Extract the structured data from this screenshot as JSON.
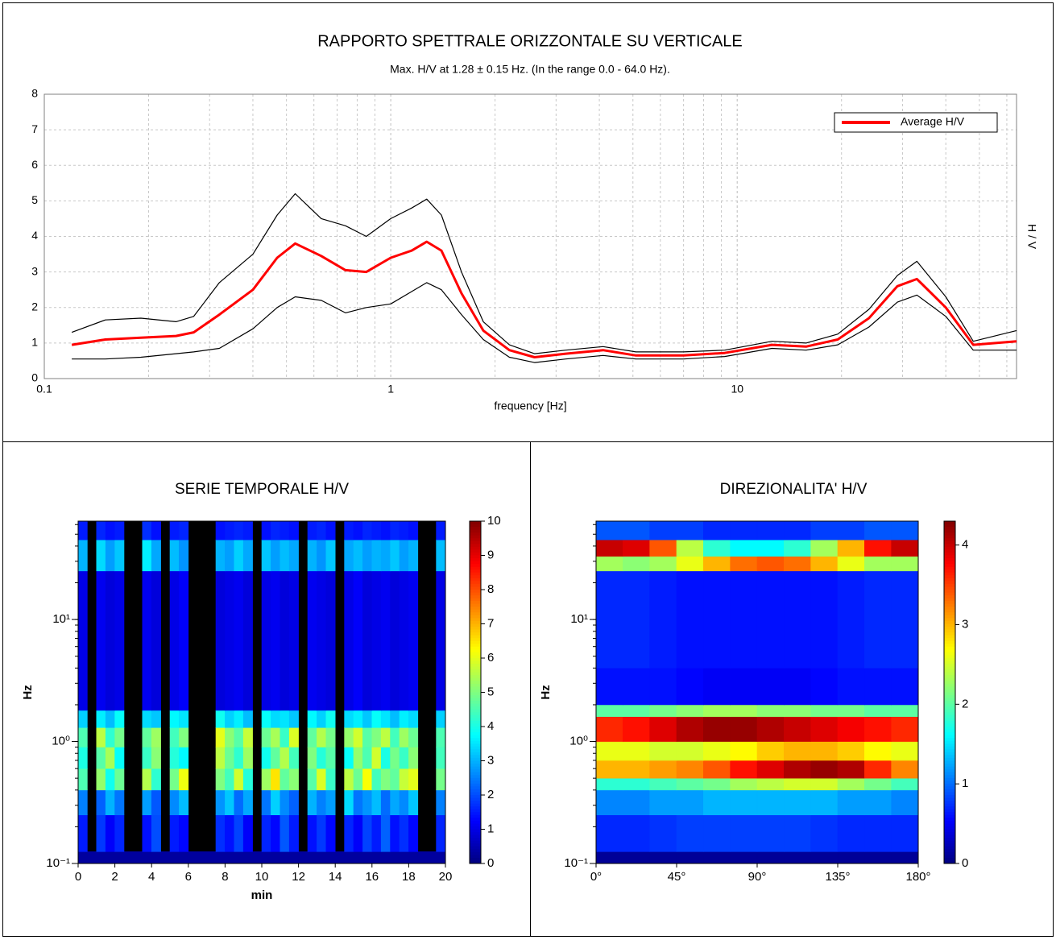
{
  "chart_data": [
    {
      "type": "line",
      "title": "RAPPORTO SPETTRALE ORIZZONTALE SU VERTICALE",
      "subtitle": "Max. H/V at 1.28 ± 0.15 Hz. (In the range 0.0 - 64.0 Hz).",
      "xlabel": "frequency [Hz]",
      "ylabel": "H / V",
      "log_x": true,
      "grid": true,
      "legend": "upper right",
      "xlim": [
        0.1,
        64
      ],
      "xticks": [
        0.1,
        1,
        10
      ],
      "ylim": [
        0,
        8
      ],
      "yticks": [
        0,
        1,
        2,
        3,
        4,
        5,
        6,
        7,
        8
      ],
      "x": [
        0.12,
        0.15,
        0.19,
        0.24,
        0.27,
        0.32,
        0.4,
        0.47,
        0.53,
        0.63,
        0.74,
        0.85,
        1.0,
        1.15,
        1.27,
        1.4,
        1.6,
        1.85,
        2.2,
        2.6,
        3.2,
        4.1,
        5.1,
        7,
        9.2,
        12.6,
        15.8,
        19.5,
        24,
        29,
        33,
        40,
        48,
        64
      ],
      "series": [
        {
          "color": "#000000",
          "values": [
            1.3,
            1.65,
            1.7,
            1.6,
            1.75,
            2.7,
            3.5,
            4.6,
            5.2,
            4.5,
            4.3,
            4.0,
            4.5,
            4.8,
            5.05,
            4.6,
            3.0,
            1.6,
            0.95,
            0.7,
            0.8,
            0.9,
            0.75,
            0.75,
            0.8,
            1.05,
            1.0,
            1.25,
            1.95,
            2.9,
            3.3,
            2.3,
            1.05,
            1.35
          ]
        },
        {
          "color": "#000000",
          "values": [
            0.55,
            0.55,
            0.6,
            0.7,
            0.75,
            0.85,
            1.4,
            2.0,
            2.3,
            2.2,
            1.85,
            2.0,
            2.1,
            2.45,
            2.7,
            2.5,
            1.8,
            1.1,
            0.6,
            0.45,
            0.55,
            0.65,
            0.55,
            0.55,
            0.62,
            0.85,
            0.8,
            0.95,
            1.45,
            2.15,
            2.35,
            1.75,
            0.8,
            0.8
          ]
        },
        {
          "name": "Average H/V",
          "color": "#ff0000",
          "values": [
            0.95,
            1.1,
            1.15,
            1.2,
            1.3,
            1.8,
            2.5,
            3.4,
            3.8,
            3.45,
            3.05,
            3.0,
            3.4,
            3.6,
            3.85,
            3.6,
            2.4,
            1.35,
            0.8,
            0.6,
            0.7,
            0.8,
            0.65,
            0.65,
            0.72,
            0.95,
            0.9,
            1.1,
            1.7,
            2.6,
            2.8,
            2.0,
            0.95,
            1.05
          ]
        }
      ]
    },
    {
      "type": "heatmap",
      "title": "SERIE TEMPORALE H/V",
      "xlabel": "min",
      "ylabel": "Hz",
      "colormap": "jet",
      "log_y": true,
      "xlim": [
        0,
        20
      ],
      "xticks": [
        0,
        2,
        4,
        6,
        8,
        10,
        12,
        14,
        16,
        18,
        20
      ],
      "ylim": [
        0.1,
        64
      ],
      "yticks": [
        {
          "value": 0.1,
          "label": "10⁻¹"
        },
        {
          "value": 1,
          "label": "10⁰"
        },
        {
          "value": 10,
          "label": "10¹"
        }
      ],
      "clim": [
        0,
        10
      ],
      "cticks": [
        0,
        1,
        2,
        3,
        4,
        5,
        6,
        7,
        8,
        9,
        10
      ],
      "x_bins": [
        0,
        0.5,
        1,
        1.5,
        2,
        2.5,
        3,
        3.5,
        4,
        4.5,
        5,
        5.5,
        6,
        6.5,
        7,
        7.5,
        8,
        8.5,
        9,
        9.5,
        10,
        10.5,
        11,
        11.5,
        12,
        12.5,
        13,
        13.5,
        14,
        14.5,
        15,
        15.5,
        16,
        16.5,
        17,
        17.5,
        18,
        18.5,
        19,
        19.5,
        20
      ],
      "y_bins": [
        0.1,
        0.125,
        0.25,
        0.4,
        0.6,
        0.9,
        1.3,
        1.8,
        25,
        45,
        64
      ],
      "values": [
        [
          0.3,
          0.3,
          0.3,
          0.3,
          0.3,
          0.3,
          0.3,
          0.3,
          0.3,
          0.3,
          0.3,
          0.3,
          0.3,
          0.3,
          0.3,
          0.3,
          0.3,
          0.3,
          0.3,
          0.3,
          0.3,
          0.3,
          0.3,
          0.3,
          0.3,
          0.3,
          0.3,
          0.3,
          0.3,
          0.3,
          0.3,
          0.3,
          0.3,
          0.3,
          0.3,
          0.3,
          0.3,
          0.3,
          0.3,
          0.3
        ],
        [
          1.5,
          null,
          1.8,
          1.2,
          1.6,
          null,
          null,
          1.4,
          2.0,
          null,
          1.5,
          1.3,
          null,
          null,
          null,
          1.7,
          1.4,
          1.9,
          1.2,
          null,
          1.6,
          1.3,
          2.1,
          1.5,
          null,
          1.4,
          1.8,
          1.3,
          null,
          1.6,
          1.2,
          1.9,
          1.5,
          2.2,
          1.4,
          1.7,
          1.3,
          null,
          null,
          1.6
        ],
        [
          2.5,
          null,
          2.2,
          3.0,
          2.4,
          null,
          null,
          2.8,
          2.1,
          null,
          2.6,
          3.1,
          null,
          null,
          null,
          2.7,
          3.2,
          2.3,
          2.9,
          null,
          2.4,
          3.3,
          2.6,
          2.2,
          null,
          3.0,
          2.5,
          2.8,
          null,
          3.4,
          2.4,
          2.7,
          3.1,
          2.3,
          2.9,
          2.6,
          3.2,
          null,
          null,
          2.5
        ],
        [
          4.5,
          null,
          5.2,
          3.9,
          4.8,
          null,
          null,
          5.5,
          4.2,
          null,
          4.9,
          6.1,
          null,
          null,
          null,
          5.0,
          4.4,
          5.8,
          4.1,
          null,
          5.3,
          6.5,
          4.7,
          5.1,
          null,
          4.6,
          5.9,
          4.3,
          null,
          5.6,
          4.8,
          6.2,
          4.4,
          5.0,
          4.7,
          5.7,
          6.0,
          null,
          null,
          4.9
        ],
        [
          4.0,
          null,
          4.6,
          5.4,
          3.8,
          null,
          null,
          4.3,
          5.1,
          null,
          4.1,
          3.7,
          null,
          null,
          null,
          5.6,
          4.8,
          4.2,
          5.3,
          null,
          3.9,
          4.7,
          5.5,
          4.4,
          null,
          5.0,
          4.1,
          4.6,
          null,
          3.8,
          5.2,
          4.5,
          5.8,
          4.0,
          4.9,
          4.3,
          5.1,
          null,
          null,
          4.4
        ],
        [
          4.5,
          null,
          5.6,
          4.2,
          4.9,
          null,
          null,
          4.7,
          5.3,
          null,
          4.4,
          5.0,
          null,
          null,
          null,
          6.0,
          5.1,
          4.6,
          5.7,
          null,
          4.8,
          5.4,
          4.3,
          5.9,
          null,
          4.7,
          5.5,
          4.9,
          null,
          5.2,
          5.8,
          4.6,
          5.0,
          5.6,
          4.4,
          5.3,
          4.8,
          null,
          null,
          4.5
        ],
        [
          3.3,
          null,
          3.6,
          3.1,
          3.8,
          null,
          null,
          3.4,
          3.2,
          null,
          3.7,
          3.5,
          null,
          null,
          null,
          3.9,
          3.3,
          3.6,
          3.1,
          null,
          3.8,
          3.4,
          3.5,
          3.2,
          null,
          3.7,
          3.3,
          3.9,
          null,
          3.4,
          3.6,
          3.2,
          3.8,
          3.5,
          3.1,
          3.6,
          3.4,
          null,
          null,
          3.3
        ],
        [
          1.0,
          null,
          1.1,
          0.9,
          1.0,
          null,
          null,
          1.1,
          0.9,
          null,
          1.0,
          1.2,
          null,
          null,
          null,
          0.9,
          1.0,
          1.1,
          0.9,
          null,
          1.0,
          1.1,
          0.9,
          1.0,
          null,
          1.1,
          1.0,
          0.9,
          null,
          1.0,
          1.2,
          0.9,
          1.0,
          1.1,
          0.9,
          1.0,
          1.1,
          null,
          null,
          1.0
        ],
        [
          3.0,
          null,
          3.4,
          2.8,
          3.2,
          null,
          null,
          3.6,
          2.9,
          null,
          3.1,
          2.7,
          null,
          null,
          null,
          3.0,
          2.8,
          3.3,
          2.9,
          null,
          3.2,
          2.8,
          3.1,
          2.9,
          null,
          3.0,
          2.7,
          3.2,
          null,
          2.9,
          3.1,
          2.8,
          3.0,
          2.9,
          3.2,
          2.8,
          3.0,
          null,
          null,
          3.1
        ],
        [
          1.5,
          null,
          1.6,
          1.4,
          1.5,
          null,
          null,
          1.7,
          1.4,
          null,
          1.5,
          1.6,
          null,
          null,
          null,
          1.4,
          1.5,
          1.6,
          1.5,
          null,
          1.4,
          1.6,
          1.5,
          1.4,
          null,
          1.5,
          1.6,
          1.4,
          null,
          1.5,
          1.4,
          1.6,
          1.5,
          1.4,
          1.6,
          1.5,
          1.4,
          null,
          null,
          1.5
        ]
      ]
    },
    {
      "type": "heatmap",
      "title": "DIREZIONALITA' H/V",
      "ylabel": "Hz",
      "colormap": "jet",
      "log_y": true,
      "xlim": [
        0,
        180
      ],
      "xticks": [
        {
          "value": 0,
          "label": "0°"
        },
        {
          "value": 45,
          "label": "45°"
        },
        {
          "value": 90,
          "label": "90°"
        },
        {
          "value": 135,
          "label": "135°"
        },
        {
          "value": 180,
          "label": "180°"
        }
      ],
      "ylim": [
        0.1,
        64
      ],
      "yticks": [
        {
          "value": 0.1,
          "label": "10⁻¹"
        },
        {
          "value": 1,
          "label": "10⁰"
        },
        {
          "value": 10,
          "label": "10¹"
        }
      ],
      "clim": [
        0,
        4.3
      ],
      "cticks": [
        0,
        1,
        2,
        3,
        4
      ],
      "x_bins": [
        0,
        15,
        30,
        45,
        60,
        75,
        90,
        105,
        120,
        135,
        150,
        165,
        180
      ],
      "y_bins": [
        0.1,
        0.125,
        0.25,
        0.4,
        0.5,
        0.7,
        1.0,
        1.6,
        2.0,
        4.0,
        25,
        33,
        45,
        64
      ],
      "values": [
        [
          0.1,
          0.1,
          0.1,
          0.1,
          0.1,
          0.1,
          0.1,
          0.1,
          0.1,
          0.1,
          0.1,
          0.1
        ],
        [
          0.7,
          0.7,
          0.75,
          0.8,
          0.8,
          0.8,
          0.8,
          0.8,
          0.75,
          0.7,
          0.7,
          0.7
        ],
        [
          1.1,
          1.1,
          1.2,
          1.2,
          1.3,
          1.3,
          1.3,
          1.3,
          1.3,
          1.2,
          1.2,
          1.1
        ],
        [
          1.8,
          1.8,
          1.9,
          2.0,
          2.1,
          2.3,
          2.4,
          2.5,
          2.5,
          2.3,
          2.1,
          1.9
        ],
        [
          3.0,
          3.0,
          3.1,
          3.2,
          3.4,
          3.7,
          3.9,
          4.1,
          4.2,
          4.1,
          3.6,
          3.2
        ],
        [
          2.6,
          2.6,
          2.5,
          2.5,
          2.6,
          2.7,
          2.9,
          3.0,
          3.0,
          2.9,
          2.7,
          2.6
        ],
        [
          3.6,
          3.7,
          3.9,
          4.1,
          4.2,
          4.2,
          4.1,
          4.0,
          3.9,
          3.8,
          3.7,
          3.6
        ],
        [
          2.0,
          2.0,
          2.1,
          2.2,
          2.3,
          2.3,
          2.2,
          2.2,
          2.1,
          2.1,
          2.0,
          2.0
        ],
        [
          0.6,
          0.6,
          0.6,
          0.55,
          0.5,
          0.5,
          0.5,
          0.5,
          0.55,
          0.6,
          0.6,
          0.6
        ],
        [
          0.7,
          0.7,
          0.65,
          0.6,
          0.6,
          0.6,
          0.6,
          0.6,
          0.6,
          0.65,
          0.7,
          0.7
        ],
        [
          2.3,
          2.2,
          2.3,
          2.6,
          3.0,
          3.3,
          3.4,
          3.3,
          3.0,
          2.6,
          2.3,
          2.3
        ],
        [
          4.0,
          3.9,
          3.4,
          2.4,
          1.8,
          1.6,
          1.6,
          1.8,
          2.3,
          3.0,
          3.7,
          4.0
        ],
        [
          0.9,
          0.9,
          0.8,
          0.8,
          0.7,
          0.7,
          0.7,
          0.7,
          0.8,
          0.8,
          0.9,
          0.9
        ]
      ]
    }
  ]
}
